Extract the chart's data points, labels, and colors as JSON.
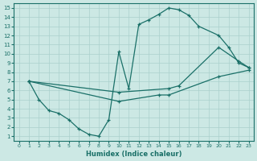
{
  "xlabel": "Humidex (Indice chaleur)",
  "bg_color": "#cce8e4",
  "line_color": "#1a7068",
  "grid_color": "#aad0cc",
  "spine_color": "#1a7068",
  "xlim": [
    -0.5,
    23.5
  ],
  "ylim": [
    0.5,
    15.5
  ],
  "xticks": [
    0,
    1,
    2,
    3,
    4,
    5,
    6,
    7,
    8,
    9,
    10,
    11,
    12,
    13,
    14,
    15,
    16,
    17,
    18,
    19,
    20,
    21,
    22,
    23
  ],
  "yticks": [
    1,
    2,
    3,
    4,
    5,
    6,
    7,
    8,
    9,
    10,
    11,
    12,
    13,
    14,
    15
  ],
  "line1_x": [
    1,
    2,
    3,
    4,
    5,
    6,
    7,
    8,
    9,
    10,
    11,
    12,
    13,
    14,
    15,
    16,
    17,
    18,
    20,
    21,
    22,
    23
  ],
  "line1_y": [
    7.0,
    5.0,
    3.8,
    3.5,
    2.8,
    1.8,
    1.2,
    1.0,
    2.8,
    10.2,
    6.2,
    13.2,
    13.7,
    14.3,
    15.0,
    14.8,
    14.2,
    13.0,
    12.0,
    10.7,
    9.0,
    8.5
  ],
  "line2_x": [
    1,
    10,
    15,
    16,
    20,
    22,
    23
  ],
  "line2_y": [
    7.0,
    5.8,
    6.2,
    6.5,
    10.7,
    9.2,
    8.5
  ],
  "line3_x": [
    1,
    10,
    14,
    15,
    20,
    23
  ],
  "line3_y": [
    7.0,
    4.8,
    5.5,
    5.5,
    7.5,
    8.2
  ],
  "marker": "+",
  "markersize": 3.5,
  "linewidth": 0.9,
  "tick_fontsize_x": 4.5,
  "tick_fontsize_y": 5.0,
  "xlabel_fontsize": 6.0
}
